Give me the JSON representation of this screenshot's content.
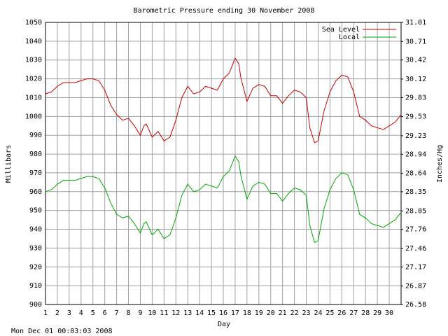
{
  "chart_data": {
    "type": "line",
    "title": "Barometric Pressure ending 30 November 2008",
    "x_label": "Day",
    "y_label": "Millibars",
    "y2_label": "Inches/Hg",
    "footer": "Mon Dec 01 00:03:03 2008",
    "grid": true,
    "legend": "upper right",
    "xlim": [
      1,
      31
    ],
    "xticks": [
      1,
      2,
      3,
      4,
      5,
      6,
      7,
      8,
      9,
      10,
      11,
      12,
      13,
      14,
      15,
      16,
      17,
      18,
      19,
      20,
      21,
      22,
      23,
      24,
      25,
      26,
      27,
      28,
      29,
      30
    ],
    "ylim": [
      900,
      1050
    ],
    "yticks": [
      900,
      910,
      920,
      930,
      940,
      950,
      960,
      970,
      980,
      990,
      1000,
      1010,
      1020,
      1030,
      1040,
      1050
    ],
    "y2lim": [
      26.58,
      31.01
    ],
    "y2ticks": [
      26.58,
      26.87,
      27.17,
      27.46,
      27.76,
      28.05,
      28.35,
      28.64,
      28.94,
      29.23,
      29.53,
      29.83,
      30.12,
      30.42,
      30.71,
      31.01
    ],
    "x": [
      1,
      1.5,
      2,
      2.5,
      3,
      3.5,
      4,
      4.5,
      5,
      5.5,
      6,
      6.5,
      7,
      7.5,
      8,
      8.5,
      9,
      9.3,
      9.5,
      10,
      10.5,
      11,
      11.5,
      12,
      12.5,
      13,
      13.5,
      14,
      14.5,
      15,
      15.5,
      16,
      16.5,
      17,
      17.3,
      17.5,
      18,
      18.5,
      19,
      19.5,
      20,
      20.5,
      21,
      21.5,
      22,
      22.5,
      23,
      23.3,
      23.7,
      24,
      24.5,
      25,
      25.5,
      26,
      26.5,
      27,
      27.5,
      28,
      28.5,
      29,
      29.5,
      30,
      30.5,
      31
    ],
    "series": [
      {
        "name": "Sea Level",
        "color": "#cc0000",
        "values": [
          1012,
          1013,
          1016,
          1018,
          1018,
          1018,
          1019,
          1020,
          1020,
          1019,
          1014,
          1006,
          1001,
          998,
          999,
          995,
          990,
          995,
          996,
          989,
          992,
          987,
          989,
          998,
          1010,
          1016,
          1012,
          1013,
          1016,
          1015,
          1014,
          1020,
          1023,
          1031,
          1028,
          1020,
          1008,
          1015,
          1017,
          1016,
          1011,
          1011,
          1007,
          1011,
          1014,
          1013,
          1010,
          994,
          986,
          987,
          1003,
          1013,
          1019,
          1022,
          1021,
          1013,
          1000,
          998,
          995,
          994,
          993,
          995,
          997,
          1001
        ]
      },
      {
        "name": "Local",
        "color": "#00aa00",
        "values": [
          960,
          961,
          964,
          966,
          966,
          966,
          967,
          968,
          968,
          967,
          962,
          954,
          948,
          946,
          947,
          943,
          938,
          943,
          944,
          937,
          940,
          935,
          937,
          946,
          958,
          964,
          960,
          961,
          964,
          963,
          962,
          968,
          971,
          979,
          976,
          968,
          956,
          963,
          965,
          964,
          959,
          959,
          955,
          959,
          962,
          961,
          958,
          942,
          933,
          934,
          951,
          961,
          967,
          970,
          969,
          961,
          948,
          946,
          943,
          942,
          941,
          943,
          945,
          949
        ]
      }
    ]
  }
}
